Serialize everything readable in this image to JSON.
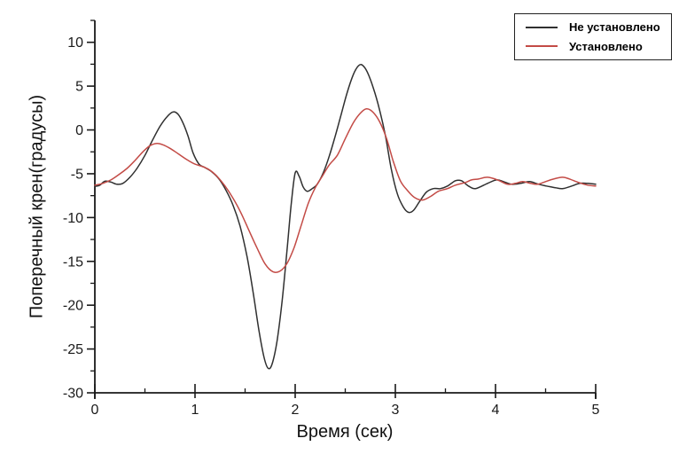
{
  "figure": {
    "background": "#ffffff",
    "axis_color": "#1a1a1a",
    "tick_label_color": "#1a1a1a"
  },
  "chart_data": {
    "type": "line",
    "title": "",
    "xlabel": "Время (сек)",
    "ylabel": "Поперечный крен(градусы)",
    "xlim": [
      0,
      5
    ],
    "ylim": [
      -30,
      12.5
    ],
    "x_major_ticks": [
      0,
      1,
      2,
      3,
      4,
      5
    ],
    "x_minor_ticks": [
      0.5,
      1.5,
      2.5,
      3.5,
      4.5
    ],
    "y_major_ticks": [
      10,
      5,
      0,
      -5,
      -10,
      -15,
      -20,
      -25,
      -30
    ],
    "y_minor_ticks": [
      12.5,
      7.5,
      2.5,
      -2.5,
      -7.5,
      -12.5,
      -17.5,
      -22.5,
      -27.5
    ],
    "grid": false,
    "legend_position": "top-right",
    "series": [
      {
        "name": "Не установлено",
        "color": "#303030",
        "points": [
          [
            0.0,
            -6.45
          ],
          [
            0.05,
            -6.3
          ],
          [
            0.1,
            -5.85
          ],
          [
            0.16,
            -5.95
          ],
          [
            0.22,
            -6.2
          ],
          [
            0.28,
            -6.1
          ],
          [
            0.35,
            -5.4
          ],
          [
            0.42,
            -4.4
          ],
          [
            0.5,
            -2.9
          ],
          [
            0.57,
            -1.3
          ],
          [
            0.65,
            0.4
          ],
          [
            0.72,
            1.5
          ],
          [
            0.78,
            2.05
          ],
          [
            0.83,
            1.8
          ],
          [
            0.88,
            0.8
          ],
          [
            0.93,
            -0.7
          ],
          [
            0.98,
            -2.6
          ],
          [
            1.04,
            -3.9
          ],
          [
            1.1,
            -4.3
          ],
          [
            1.17,
            -4.8
          ],
          [
            1.24,
            -5.6
          ],
          [
            1.31,
            -6.9
          ],
          [
            1.38,
            -8.6
          ],
          [
            1.45,
            -11.0
          ],
          [
            1.52,
            -14.5
          ],
          [
            1.58,
            -18.5
          ],
          [
            1.64,
            -23.0
          ],
          [
            1.69,
            -26.0
          ],
          [
            1.73,
            -27.2
          ],
          [
            1.77,
            -26.7
          ],
          [
            1.82,
            -24.0
          ],
          [
            1.87,
            -19.5
          ],
          [
            1.92,
            -13.5
          ],
          [
            1.96,
            -8.5
          ],
          [
            2.0,
            -4.9
          ],
          [
            2.04,
            -5.3
          ],
          [
            2.08,
            -6.5
          ],
          [
            2.12,
            -7.0
          ],
          [
            2.17,
            -6.7
          ],
          [
            2.22,
            -6.2
          ],
          [
            2.28,
            -4.9
          ],
          [
            2.34,
            -3.0
          ],
          [
            2.4,
            -0.7
          ],
          [
            2.46,
            1.8
          ],
          [
            2.52,
            4.3
          ],
          [
            2.58,
            6.3
          ],
          [
            2.63,
            7.3
          ],
          [
            2.67,
            7.4
          ],
          [
            2.72,
            6.6
          ],
          [
            2.78,
            4.8
          ],
          [
            2.84,
            2.4
          ],
          [
            2.9,
            -0.6
          ],
          [
            2.96,
            -4.5
          ],
          [
            3.02,
            -7.3
          ],
          [
            3.08,
            -8.8
          ],
          [
            3.13,
            -9.4
          ],
          [
            3.18,
            -9.2
          ],
          [
            3.24,
            -8.2
          ],
          [
            3.31,
            -7.1
          ],
          [
            3.38,
            -6.7
          ],
          [
            3.45,
            -6.7
          ],
          [
            3.52,
            -6.4
          ],
          [
            3.6,
            -5.8
          ],
          [
            3.66,
            -5.8
          ],
          [
            3.73,
            -6.4
          ],
          [
            3.8,
            -6.7
          ],
          [
            3.92,
            -6.1
          ],
          [
            4.01,
            -5.7
          ],
          [
            4.08,
            -5.9
          ],
          [
            4.16,
            -6.2
          ],
          [
            4.25,
            -6.1
          ],
          [
            4.34,
            -5.9
          ],
          [
            4.43,
            -6.2
          ],
          [
            4.51,
            -6.4
          ],
          [
            4.6,
            -6.6
          ],
          [
            4.67,
            -6.7
          ],
          [
            4.76,
            -6.4
          ],
          [
            4.84,
            -6.1
          ],
          [
            4.92,
            -6.1
          ],
          [
            5.0,
            -6.2
          ]
        ]
      },
      {
        "name": "Установлено",
        "color": "#c34b46",
        "points": [
          [
            0.0,
            -6.3
          ],
          [
            0.08,
            -6.1
          ],
          [
            0.16,
            -5.7
          ],
          [
            0.24,
            -5.1
          ],
          [
            0.32,
            -4.4
          ],
          [
            0.4,
            -3.5
          ],
          [
            0.48,
            -2.5
          ],
          [
            0.55,
            -1.8
          ],
          [
            0.62,
            -1.55
          ],
          [
            0.68,
            -1.7
          ],
          [
            0.75,
            -2.1
          ],
          [
            0.83,
            -2.7
          ],
          [
            0.92,
            -3.4
          ],
          [
            1.0,
            -3.9
          ],
          [
            1.08,
            -4.2
          ],
          [
            1.15,
            -4.6
          ],
          [
            1.22,
            -5.3
          ],
          [
            1.3,
            -6.4
          ],
          [
            1.38,
            -7.8
          ],
          [
            1.46,
            -9.5
          ],
          [
            1.54,
            -11.5
          ],
          [
            1.62,
            -13.5
          ],
          [
            1.7,
            -15.3
          ],
          [
            1.78,
            -16.2
          ],
          [
            1.85,
            -16.1
          ],
          [
            1.92,
            -15.2
          ],
          [
            1.99,
            -13.4
          ],
          [
            2.06,
            -10.9
          ],
          [
            2.13,
            -8.4
          ],
          [
            2.2,
            -6.6
          ],
          [
            2.27,
            -5.3
          ],
          [
            2.34,
            -4.0
          ],
          [
            2.42,
            -2.9
          ],
          [
            2.5,
            -1.0
          ],
          [
            2.58,
            0.8
          ],
          [
            2.65,
            1.9
          ],
          [
            2.71,
            2.4
          ],
          [
            2.77,
            2.1
          ],
          [
            2.84,
            1.0
          ],
          [
            2.91,
            -0.9
          ],
          [
            2.98,
            -3.6
          ],
          [
            3.05,
            -5.8
          ],
          [
            3.12,
            -6.9
          ],
          [
            3.19,
            -7.7
          ],
          [
            3.27,
            -8.0
          ],
          [
            3.35,
            -7.6
          ],
          [
            3.43,
            -7.0
          ],
          [
            3.52,
            -6.7
          ],
          [
            3.6,
            -6.3
          ],
          [
            3.7,
            -6.0
          ],
          [
            3.76,
            -5.7
          ],
          [
            3.83,
            -5.6
          ],
          [
            3.92,
            -5.4
          ],
          [
            4.02,
            -5.7
          ],
          [
            4.12,
            -6.2
          ],
          [
            4.2,
            -6.1
          ],
          [
            4.27,
            -5.9
          ],
          [
            4.35,
            -6.1
          ],
          [
            4.42,
            -6.2
          ],
          [
            4.5,
            -5.9
          ],
          [
            4.58,
            -5.6
          ],
          [
            4.67,
            -5.4
          ],
          [
            4.74,
            -5.6
          ],
          [
            4.83,
            -6.0
          ],
          [
            4.92,
            -6.3
          ],
          [
            5.0,
            -6.4
          ]
        ]
      }
    ]
  }
}
